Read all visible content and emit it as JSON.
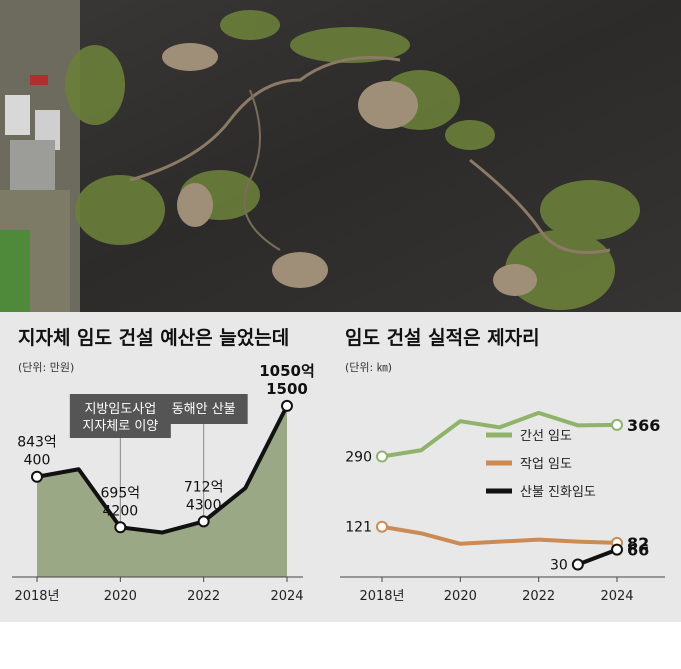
{
  "photo": {
    "description_icon": "aerial-burned-forest-photo"
  },
  "colors": {
    "panel_bg": "#e8e8e8",
    "budget_fill": "#9aa886",
    "trunk": "#8fb36a",
    "work": "#cc8a55",
    "firebreak": "#111111",
    "annot_box": "#555555"
  },
  "chart_data": [
    {
      "type": "area",
      "title": "지자체 임도 건설 예산은 늘었는데",
      "unit_note": "(단위: 만원)",
      "x_ticks": [
        "2018년",
        "2020",
        "2022",
        "2024"
      ],
      "x": [
        2018,
        2019,
        2020,
        2021,
        2022,
        2023,
        2024
      ],
      "values": [
        8430400,
        8650000,
        6954200,
        6800000,
        7124300,
        8100000,
        10501500
      ],
      "ylim": [
        5500000,
        11200000
      ],
      "labels": [
        {
          "x": 2018,
          "line1": "843억",
          "line2": "400"
        },
        {
          "x": 2020,
          "line1": "695억",
          "line2": "4200"
        },
        {
          "x": 2022,
          "line1": "712억",
          "line2": "4300"
        },
        {
          "x": 2024,
          "line1": "1050억",
          "line2": "1500"
        }
      ],
      "annotations": [
        {
          "x": 2020,
          "line1": "지방임도사업",
          "line2": "지자체로 이양"
        },
        {
          "x": 2022,
          "line1": "동해안 산불",
          "line2": ""
        }
      ]
    },
    {
      "type": "line",
      "title": "임도 건설 실적은 제자리",
      "unit_note": "(단위: ㎞)",
      "x_ticks": [
        "2018년",
        "2020",
        "2022",
        "2024"
      ],
      "x": [
        2018,
        2019,
        2020,
        2021,
        2022,
        2023,
        2024
      ],
      "ylim": [
        0,
        450
      ],
      "legend_position": "right",
      "series": [
        {
          "name": "간선 임도",
          "key": "trunk",
          "values": [
            290,
            305,
            375,
            360,
            395,
            365,
            366
          ],
          "start_label": "290",
          "end_label": "366"
        },
        {
          "name": "작업 임도",
          "key": "work",
          "values": [
            121,
            105,
            80,
            85,
            90,
            85,
            82
          ],
          "start_label": "121",
          "end_label": "82"
        },
        {
          "name": "산불 진화임도",
          "key": "firebreak",
          "x": [
            2023,
            2024
          ],
          "values": [
            30,
            66
          ],
          "start_label": "30",
          "end_label": "66"
        }
      ]
    }
  ]
}
